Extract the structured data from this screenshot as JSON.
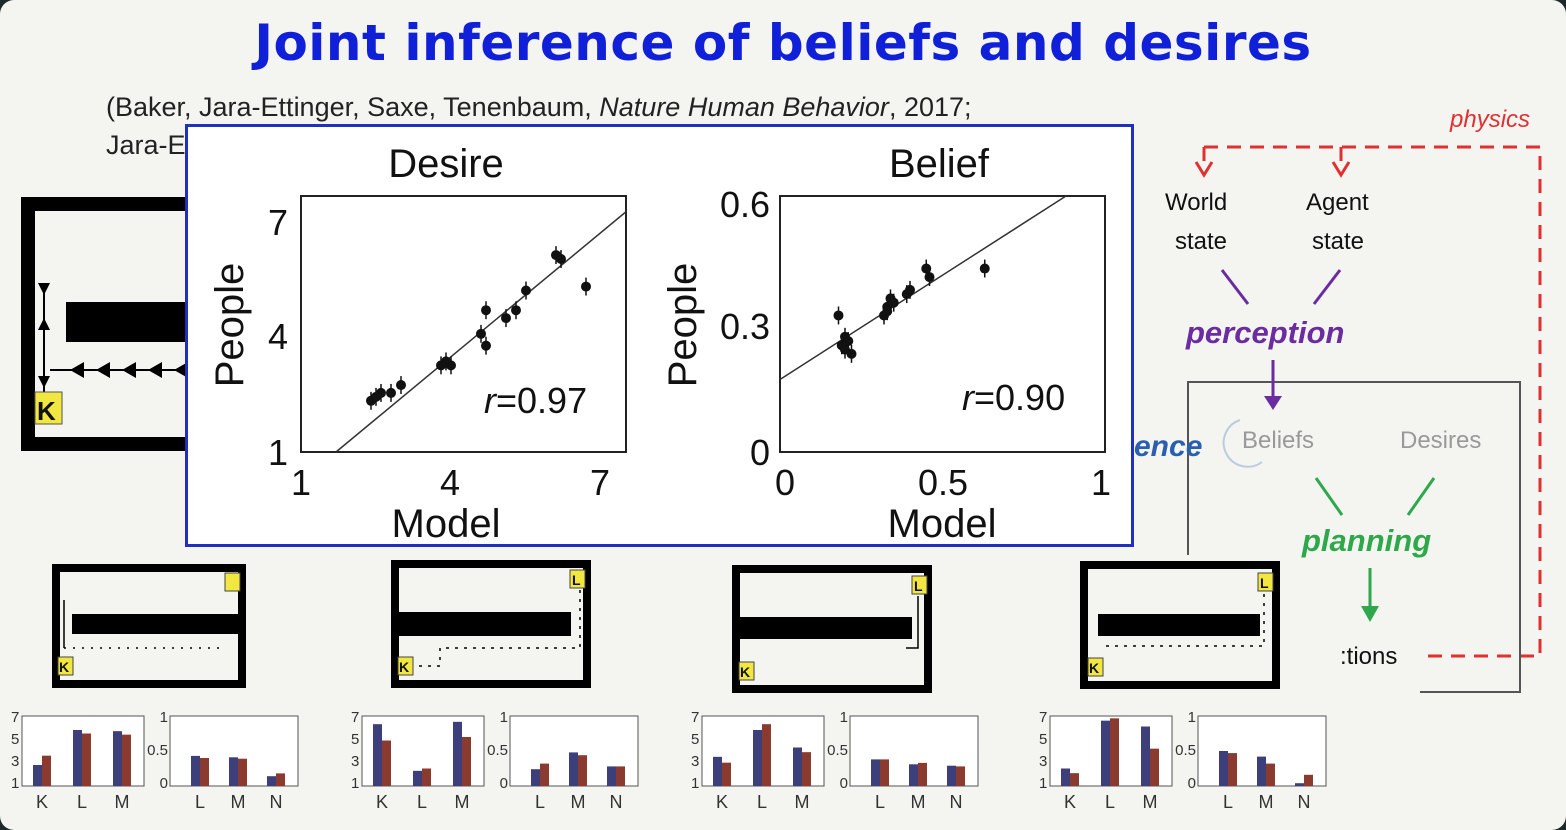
{
  "slide": {
    "title": "Joint inference of beliefs and desires",
    "citation_line1_prefix": "(Baker, Jara-Ettinger, Saxe, Tenenbaum, ",
    "citation_line1_journal": "Nature Human Behavior",
    "citation_line1_suffix": ", 2017;",
    "citation_line2": "Jara-E"
  },
  "inset": {
    "left_plot": {
      "title": "Desire",
      "ylabel": "People",
      "xlabel": "Model",
      "xticks": [
        "1",
        "4",
        "7"
      ],
      "yticks": [
        "1",
        "4",
        "7"
      ],
      "r_prefix": "r",
      "r_value": "=0.97"
    },
    "right_plot": {
      "title": "Belief",
      "ylabel": "People",
      "xlabel": "Model",
      "xticks": [
        "0",
        "0.5",
        "1"
      ],
      "yticks": [
        "0",
        "0.3",
        "0.6"
      ],
      "r_prefix": "r",
      "r_value": "=0.90"
    }
  },
  "diagram": {
    "physics": "physics",
    "world_state_1": "World",
    "world_state_2": "state",
    "agent_state_1": "Agent",
    "agent_state_2": "state",
    "perception": "perception",
    "inference_partial": "ence",
    "beliefs": "Beliefs",
    "desires": "Desires",
    "planning": "planning",
    "actions_partial": ":tions",
    "colors": {
      "physics": "#e03030",
      "perception": "#6a2ca0",
      "planning": "#2ea84a",
      "inference": "#2a5fb0"
    }
  },
  "scenarios": [
    {
      "maze_labels": [
        "K"
      ],
      "desire_ticks": [
        "7",
        "5",
        "3",
        "1"
      ],
      "desire_x": [
        "K",
        "L",
        "M"
      ],
      "belief_ticks": [
        "1",
        "0.5",
        "0"
      ],
      "belief_x": [
        "L",
        "M",
        "N"
      ],
      "desire_blue": [
        2.8,
        5.8,
        5.7
      ],
      "desire_red": [
        3.6,
        5.5,
        5.4
      ],
      "belief_blue": [
        0.43,
        0.41,
        0.14
      ],
      "belief_red": [
        0.4,
        0.39,
        0.18
      ]
    },
    {
      "maze_labels": [
        "L",
        "K"
      ],
      "desire_ticks": [
        "7",
        "5",
        "3",
        "1"
      ],
      "desire_x": [
        "K",
        "L",
        "M"
      ],
      "belief_ticks": [
        "1",
        "0.5",
        "0"
      ],
      "belief_x": [
        "L",
        "M",
        "N"
      ],
      "desire_blue": [
        6.3,
        2.3,
        6.5
      ],
      "desire_red": [
        4.9,
        2.5,
        5.2
      ],
      "belief_blue": [
        0.24,
        0.48,
        0.28
      ],
      "belief_red": [
        0.32,
        0.44,
        0.28
      ]
    },
    {
      "maze_labels": [
        "L",
        "K"
      ],
      "desire_ticks": [
        "7",
        "5",
        "3",
        "1"
      ],
      "desire_x": [
        "K",
        "L",
        "M"
      ],
      "belief_ticks": [
        "1",
        "0.5",
        "0"
      ],
      "belief_x": [
        "L",
        "M",
        "N"
      ],
      "desire_blue": [
        3.5,
        5.8,
        4.3
      ],
      "desire_red": [
        3.0,
        6.3,
        3.9
      ],
      "belief_blue": [
        0.38,
        0.31,
        0.29
      ],
      "belief_red": [
        0.38,
        0.33,
        0.28
      ]
    },
    {
      "maze_labels": [
        "L",
        "K"
      ],
      "desire_ticks": [
        "7",
        "5",
        "3",
        "1"
      ],
      "desire_x": [
        "K",
        "L",
        "M"
      ],
      "belief_ticks": [
        "1",
        "0.5",
        "0"
      ],
      "belief_x": [
        "L",
        "M",
        "N"
      ],
      "desire_blue": [
        2.5,
        6.6,
        6.1
      ],
      "desire_red": [
        2.1,
        6.8,
        4.2
      ],
      "belief_blue": [
        0.5,
        0.42,
        0.04
      ],
      "belief_red": [
        0.47,
        0.32,
        0.16
      ]
    }
  ],
  "chart_data": [
    {
      "type": "scatter",
      "title": "Desire",
      "xlabel": "Model",
      "ylabel": "People",
      "xlim": [
        1,
        7.5
      ],
      "ylim": [
        1,
        7.5
      ],
      "annotation": "r=0.97",
      "points": [
        [
          2.4,
          2.3
        ],
        [
          2.5,
          2.4
        ],
        [
          2.6,
          2.5
        ],
        [
          2.8,
          2.5
        ],
        [
          3.0,
          2.7
        ],
        [
          3.8,
          3.2
        ],
        [
          3.9,
          3.3
        ],
        [
          4.0,
          3.2
        ],
        [
          4.6,
          4.0
        ],
        [
          4.7,
          3.7
        ],
        [
          4.7,
          4.6
        ],
        [
          5.1,
          4.4
        ],
        [
          5.3,
          4.6
        ],
        [
          5.5,
          5.1
        ],
        [
          6.1,
          6.0
        ],
        [
          6.2,
          5.9
        ],
        [
          6.7,
          5.2
        ]
      ]
    },
    {
      "type": "scatter",
      "title": "Belief",
      "xlabel": "Model",
      "ylabel": "People",
      "xlim": [
        0,
        1
      ],
      "ylim": [
        0,
        0.6
      ],
      "annotation": "r=0.90",
      "points": [
        [
          0.18,
          0.32
        ],
        [
          0.19,
          0.25
        ],
        [
          0.2,
          0.24
        ],
        [
          0.21,
          0.26
        ],
        [
          0.22,
          0.23
        ],
        [
          0.2,
          0.27
        ],
        [
          0.32,
          0.32
        ],
        [
          0.33,
          0.34
        ],
        [
          0.34,
          0.36
        ],
        [
          0.33,
          0.33
        ],
        [
          0.35,
          0.35
        ],
        [
          0.39,
          0.37
        ],
        [
          0.4,
          0.38
        ],
        [
          0.45,
          0.43
        ],
        [
          0.46,
          0.41
        ],
        [
          0.63,
          0.43
        ]
      ]
    }
  ]
}
